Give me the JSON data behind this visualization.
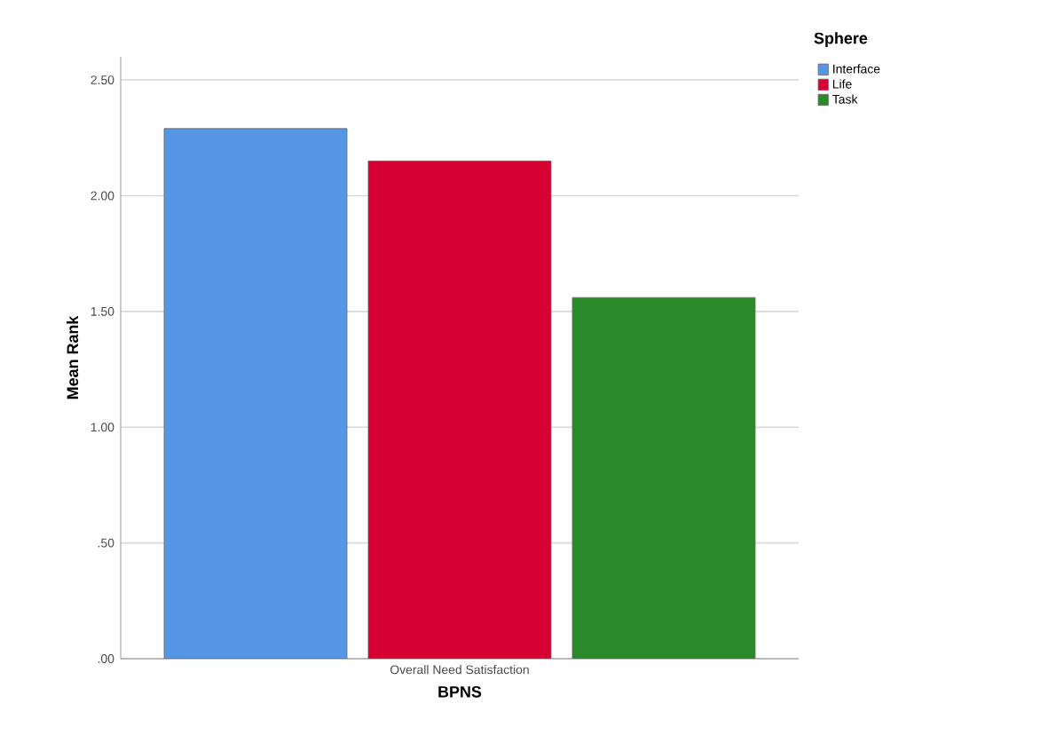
{
  "chart_data": {
    "type": "bar",
    "xlabel": "BPNS",
    "ylabel": "Mean Rank",
    "legend_title": "Sphere",
    "categories": [
      "Overall Need Satisfaction"
    ],
    "series": [
      {
        "name": "Interface",
        "color": "#5596e6",
        "values": [
          2.29
        ]
      },
      {
        "name": "Life",
        "color": "#d60032",
        "values": [
          2.15
        ]
      },
      {
        "name": "Task",
        "color": "#2a8a2a",
        "values": [
          1.56
        ]
      }
    ],
    "ylim": [
      0,
      2.6
    ],
    "yticks": [
      {
        "value": 0,
        "label": ".00"
      },
      {
        "value": 0.5,
        "label": ".50"
      },
      {
        "value": 1,
        "label": "1.00"
      },
      {
        "value": 1.5,
        "label": "1.50"
      },
      {
        "value": 2,
        "label": "2.00"
      },
      {
        "value": 2.5,
        "label": "2.50"
      }
    ],
    "grid": "y",
    "legend": "top right"
  }
}
